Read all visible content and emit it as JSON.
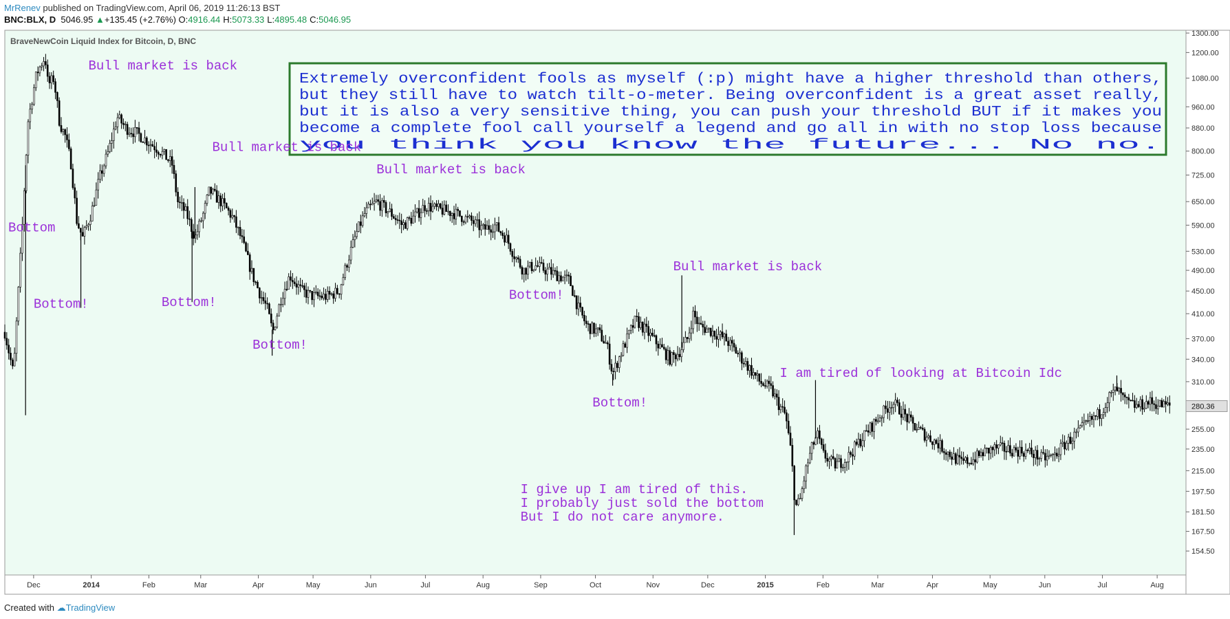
{
  "header": {
    "author": "MrRenev",
    "published_text": "published on TradingView.com, April 06, 2019 11:26:13 BST",
    "symbol": "BNC:BLX, D",
    "last_price": "5046.95",
    "change": "+135.45 (+2.76%)",
    "open_label": "O:",
    "open_value": "4916.44",
    "high_label": "H:",
    "high_value": "5073.33",
    "low_label": "L:",
    "low_value": "4895.48",
    "close_label": "C:",
    "close_value": "5046.95"
  },
  "footer": {
    "created_with": "Created with",
    "brand": "TradingView"
  },
  "colors": {
    "background": "#edfbf3",
    "candle": "#000000",
    "annotation": "#9b30d9",
    "note_text": "#1c2fd1",
    "note_border": "#2c7a2c",
    "note_bg": "#f2fdf6",
    "price_tag_bg": "#e0e0e0"
  },
  "chart_data": {
    "type": "candlestick",
    "title": "BraveNewCoin Liquid Index for Bitcoin, D, BNC",
    "y_scale": "log",
    "ylim": [
      140,
      1315
    ],
    "yticks": [
      "1300.00",
      "1200.00",
      "1080.00",
      "960.00",
      "880.00",
      "800.00",
      "725.00",
      "650.00",
      "590.00",
      "530.00",
      "490.00",
      "450.00",
      "410.00",
      "370.00",
      "340.00",
      "310.00",
      "280.36",
      "255.00",
      "235.00",
      "215.00",
      "197.50",
      "181.50",
      "167.50",
      "154.50"
    ],
    "last_price_label": "280.36",
    "x_range_months": [
      0,
      20.5
    ],
    "xticks": [
      {
        "label": "Dec",
        "pos": 0.5
      },
      {
        "label": "2014",
        "pos": 1.5,
        "bold": true
      },
      {
        "label": "Feb",
        "pos": 2.5
      },
      {
        "label": "Mar",
        "pos": 3.4
      },
      {
        "label": "Apr",
        "pos": 4.4
      },
      {
        "label": "May",
        "pos": 5.35
      },
      {
        "label": "Jun",
        "pos": 6.35
      },
      {
        "label": "Jul",
        "pos": 7.3
      },
      {
        "label": "Aug",
        "pos": 8.3
      },
      {
        "label": "Sep",
        "pos": 9.3
      },
      {
        "label": "Oct",
        "pos": 10.25
      },
      {
        "label": "Nov",
        "pos": 11.25
      },
      {
        "label": "Dec",
        "pos": 12.2
      },
      {
        "label": "2015",
        "pos": 13.2,
        "bold": true
      },
      {
        "label": "Feb",
        "pos": 14.2
      },
      {
        "label": "Mar",
        "pos": 15.15
      },
      {
        "label": "Apr",
        "pos": 16.1
      },
      {
        "label": "May",
        "pos": 17.1
      },
      {
        "label": "Jun",
        "pos": 18.05
      },
      {
        "label": "Jul",
        "pos": 19.05
      },
      {
        "label": "Aug",
        "pos": 20.0
      }
    ],
    "price_path": [
      [
        0.0,
        380
      ],
      [
        0.15,
        320
      ],
      [
        0.3,
        580
      ],
      [
        0.4,
        900
      ],
      [
        0.55,
        1100
      ],
      [
        0.7,
        1180
      ],
      [
        0.75,
        1050
      ],
      [
        0.85,
        1080
      ],
      [
        0.95,
        900
      ],
      [
        1.05,
        850
      ],
      [
        1.15,
        760
      ],
      [
        1.25,
        600
      ],
      [
        1.35,
        560
      ],
      [
        1.5,
        620
      ],
      [
        1.65,
        720
      ],
      [
        1.8,
        800
      ],
      [
        1.95,
        920
      ],
      [
        2.1,
        880
      ],
      [
        2.3,
        860
      ],
      [
        2.5,
        830
      ],
      [
        2.7,
        800
      ],
      [
        2.9,
        760
      ],
      [
        3.0,
        650
      ],
      [
        3.15,
        620
      ],
      [
        3.3,
        560
      ],
      [
        3.45,
        620
      ],
      [
        3.55,
        680
      ],
      [
        3.75,
        650
      ],
      [
        3.95,
        610
      ],
      [
        4.1,
        560
      ],
      [
        4.3,
        480
      ],
      [
        4.45,
        440
      ],
      [
        4.55,
        420
      ],
      [
        4.65,
        380
      ],
      [
        4.8,
        440
      ],
      [
        4.95,
        480
      ],
      [
        5.15,
        450
      ],
      [
        5.35,
        440
      ],
      [
        5.6,
        440
      ],
      [
        5.8,
        450
      ],
      [
        5.95,
        510
      ],
      [
        6.1,
        570
      ],
      [
        6.25,
        620
      ],
      [
        6.45,
        650
      ],
      [
        6.7,
        620
      ],
      [
        6.9,
        590
      ],
      [
        7.1,
        610
      ],
      [
        7.3,
        640
      ],
      [
        7.5,
        630
      ],
      [
        7.8,
        620
      ],
      [
        8.1,
        600
      ],
      [
        8.3,
        580
      ],
      [
        8.5,
        590
      ],
      [
        8.7,
        560
      ],
      [
        8.85,
        520
      ],
      [
        9.0,
        490
      ],
      [
        9.2,
        500
      ],
      [
        9.4,
        490
      ],
      [
        9.6,
        480
      ],
      [
        9.8,
        470
      ],
      [
        9.95,
        420
      ],
      [
        10.1,
        390
      ],
      [
        10.3,
        380
      ],
      [
        10.45,
        360
      ],
      [
        10.55,
        320
      ],
      [
        10.7,
        350
      ],
      [
        10.85,
        380
      ],
      [
        10.95,
        400
      ],
      [
        11.15,
        380
      ],
      [
        11.35,
        360
      ],
      [
        11.55,
        340
      ],
      [
        11.7,
        350
      ],
      [
        11.85,
        370
      ],
      [
        11.95,
        410
      ],
      [
        12.05,
        390
      ],
      [
        12.3,
        380
      ],
      [
        12.5,
        370
      ],
      [
        12.7,
        350
      ],
      [
        12.9,
        330
      ],
      [
        13.1,
        310
      ],
      [
        13.3,
        300
      ],
      [
        13.45,
        280
      ],
      [
        13.55,
        270
      ],
      [
        13.65,
        230
      ],
      [
        13.72,
        185
      ],
      [
        13.8,
        190
      ],
      [
        13.9,
        215
      ],
      [
        14.0,
        235
      ],
      [
        14.1,
        250
      ],
      [
        14.2,
        230
      ],
      [
        14.4,
        220
      ],
      [
        14.6,
        225
      ],
      [
        14.8,
        240
      ],
      [
        15.0,
        255
      ],
      [
        15.2,
        270
      ],
      [
        15.4,
        285
      ],
      [
        15.55,
        275
      ],
      [
        15.75,
        260
      ],
      [
        15.95,
        250
      ],
      [
        16.2,
        240
      ],
      [
        16.4,
        230
      ],
      [
        16.6,
        222
      ],
      [
        16.8,
        225
      ],
      [
        17.0,
        232
      ],
      [
        17.2,
        236
      ],
      [
        17.5,
        234
      ],
      [
        17.8,
        232
      ],
      [
        18.0,
        226
      ],
      [
        18.2,
        228
      ],
      [
        18.4,
        240
      ],
      [
        18.6,
        250
      ],
      [
        18.8,
        262
      ],
      [
        19.0,
        272
      ],
      [
        19.15,
        290
      ],
      [
        19.3,
        300
      ],
      [
        19.45,
        285
      ],
      [
        19.65,
        280
      ],
      [
        19.85,
        285
      ],
      [
        20.05,
        282
      ],
      [
        20.25,
        280
      ]
    ],
    "spikes": [
      {
        "x": 0.36,
        "low": 270
      },
      {
        "x": 1.32,
        "low": 420
      },
      {
        "x": 3.25,
        "low": 430
      },
      {
        "x": 3.3,
        "high": 690
      },
      {
        "x": 4.64,
        "low": 345
      },
      {
        "x": 10.55,
        "low": 305
      },
      {
        "x": 11.75,
        "high": 480
      },
      {
        "x": 13.7,
        "low": 165
      },
      {
        "x": 14.07,
        "high": 312
      },
      {
        "x": 19.3,
        "high": 318
      }
    ],
    "annotations": [
      {
        "text": "Bull market is back",
        "pos": [
          1.45,
          1120
        ],
        "color": "#9b30d9"
      },
      {
        "text": "Bull market is back",
        "pos": [
          3.6,
          800
        ],
        "color": "#9b30d9"
      },
      {
        "text": "Bull market is back",
        "pos": [
          6.45,
          730
        ],
        "color": "#9b30d9"
      },
      {
        "text": "Bull market is back",
        "pos": [
          11.6,
          490
        ],
        "color": "#9b30d9"
      },
      {
        "text": "Bottom",
        "pos": [
          0.06,
          575
        ],
        "color": "#9b30d9"
      },
      {
        "text": "Bottom!",
        "pos": [
          0.5,
          420
        ],
        "color": "#9b30d9"
      },
      {
        "text": "Bottom!",
        "pos": [
          2.72,
          423
        ],
        "color": "#9b30d9"
      },
      {
        "text": "Bottom!",
        "pos": [
          4.3,
          355
        ],
        "color": "#9b30d9"
      },
      {
        "text": "Bottom!",
        "pos": [
          8.75,
          436
        ],
        "color": "#9b30d9"
      },
      {
        "text": "Bottom!",
        "pos": [
          10.2,
          280
        ],
        "color": "#9b30d9"
      },
      {
        "text": "I am tired of looking at Bitcoin Idc",
        "pos": [
          13.45,
          316
        ],
        "color": "#9b30d9"
      },
      {
        "lines": [
          "I give up I am tired of this.",
          "I probably just sold the bottom",
          "But I do not care anymore."
        ],
        "pos": [
          8.95,
          196
        ],
        "color": "#9b30d9"
      }
    ],
    "note": {
      "lines": [
        "Extremely overconfident fools as myself (:p) might have a higher threshold than others,",
        "but they still have to watch tilt-o-meter. Being overconfident is a great asset really,",
        "but it is also a very sensitive thing, you can push your threshold BUT if it makes you",
        "become a complete fool call yourself a legend and go all in with no stop loss because",
        "you think you know the future... No no."
      ]
    }
  }
}
